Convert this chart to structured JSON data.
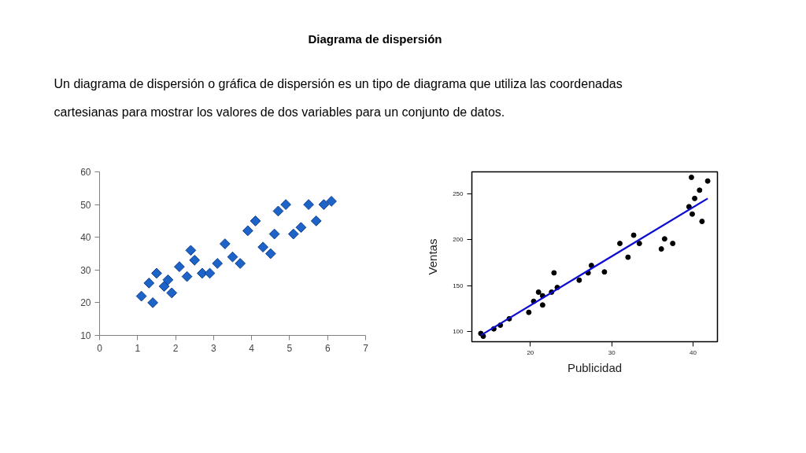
{
  "chart_data": [
    {
      "type": "other",
      "title": "Diagrama de dispersión",
      "annotations": [
        "Un diagrama de dispersión o gráfica de dispersión es un tipo de diagrama que utiliza las coordenadas cartesianas para mostrar los valores de dos variables para un conjunto de datos."
      ]
    },
    {
      "type": "scatter",
      "x": [
        1.1,
        1.3,
        1.4,
        1.5,
        1.7,
        1.8,
        1.9,
        2.1,
        2.3,
        2.4,
        2.5,
        2.7,
        2.9,
        3.1,
        3.3,
        3.5,
        3.7,
        3.9,
        4.1,
        4.3,
        4.5,
        4.6,
        4.7,
        4.9,
        5.1,
        5.3,
        5.5,
        5.7,
        5.9,
        6.1
      ],
      "values": [
        22,
        26,
        20,
        29,
        25,
        27,
        23,
        31,
        28,
        36,
        33,
        29,
        29,
        32,
        38,
        34,
        32,
        42,
        45,
        37,
        35,
        41,
        48,
        50,
        41,
        43,
        50,
        45,
        50,
        51
      ],
      "color": "#1e64c8",
      "marker": "diamond",
      "xlim": [
        0,
        7
      ],
      "ylim": [
        10,
        60
      ],
      "xticks": [
        0,
        1,
        2,
        3,
        4,
        5,
        6,
        7
      ],
      "yticks": [
        10,
        20,
        30,
        40,
        50,
        60
      ]
    },
    {
      "type": "scatter",
      "xlabel": "Publicidad",
      "ylabel": "Ventas",
      "xlim": [
        12.8,
        43
      ],
      "ylim": [
        89,
        274
      ],
      "xticks": [
        20,
        30,
        40
      ],
      "yticks": [
        100,
        150,
        200,
        250
      ],
      "series": [
        {
          "type": "scatter",
          "marker": "circle",
          "color": "#000000",
          "x": [
            13.9,
            14.2,
            15.5,
            16.3,
            17.4,
            19.8,
            20.4,
            21.0,
            21.5,
            21.5,
            22.6,
            22.9,
            23.3,
            26.0,
            27.1,
            27.5,
            29.1,
            31.0,
            32.0,
            32.7,
            33.4,
            36.1,
            36.5,
            37.5,
            39.5,
            39.8,
            39.9,
            40.2,
            40.8,
            41.1,
            41.8
          ],
          "values": [
            98,
            95,
            103,
            107,
            114,
            121,
            133,
            143,
            139,
            129,
            143,
            164,
            148,
            156,
            164,
            172,
            165,
            196,
            181,
            205,
            196,
            190,
            201,
            196,
            236,
            268,
            228,
            245,
            254,
            220,
            264
          ]
        },
        {
          "type": "line",
          "color": "#0d0dd0",
          "x": [
            13.9,
            41.8
          ],
          "values": [
            96,
            245
          ]
        }
      ]
    }
  ]
}
